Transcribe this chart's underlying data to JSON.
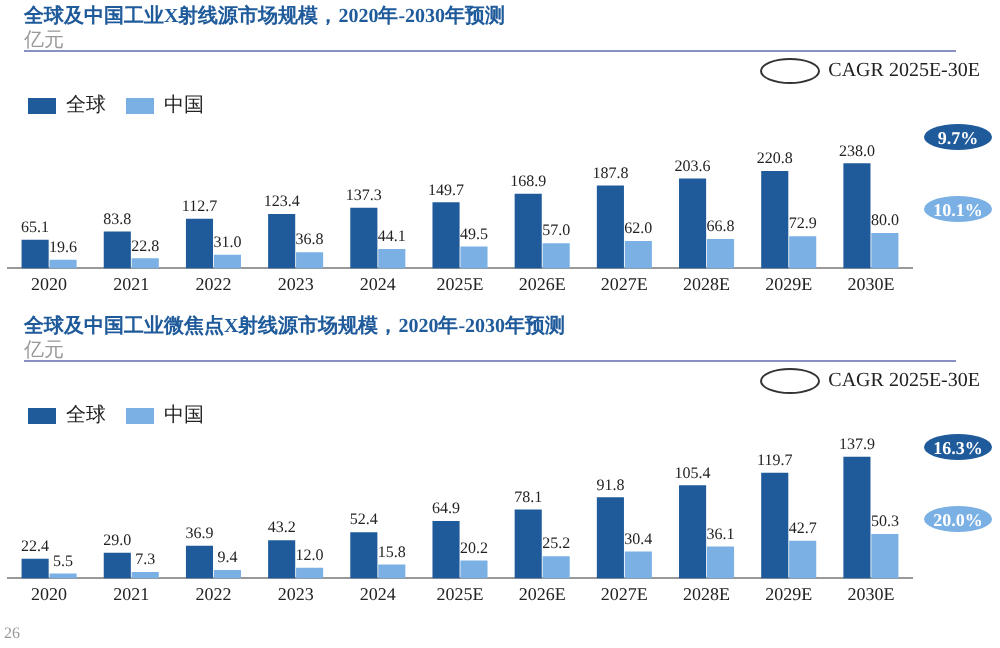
{
  "chart_data": [
    {
      "type": "bar",
      "title": "全球及中国工业X射线源市场规模，2020年-2030年预测",
      "subtitle": "亿元",
      "categories": [
        "2020",
        "2021",
        "2022",
        "2023",
        "2024",
        "2025E",
        "2026E",
        "2027E",
        "2028E",
        "2029E",
        "2030E"
      ],
      "series": [
        {
          "name": "全球",
          "color": "#1f5a9a",
          "values": [
            65.1,
            83.8,
            112.7,
            123.4,
            137.3,
            149.7,
            168.9,
            187.8,
            203.6,
            220.8,
            238.0
          ],
          "value_labels": [
            "65.1",
            "83.8",
            "112.7",
            "123.4",
            "137.3",
            "149.7",
            "168.9",
            "187.8",
            "203.6",
            "220.8",
            "238.0"
          ]
        },
        {
          "name": "中国",
          "color": "#7ab0e3",
          "values": [
            19.6,
            22.8,
            31.0,
            36.8,
            44.1,
            49.5,
            57.0,
            62.0,
            66.8,
            72.9,
            80.0
          ],
          "value_labels": [
            "19.6",
            "22.8",
            "31.0",
            "36.8",
            "44.1",
            "49.5",
            "57.0",
            "62.0",
            "66.8",
            "72.9",
            "80.0"
          ]
        }
      ],
      "annotations": [
        "CAGR 2025E-30E",
        "9.7%",
        "10.1%"
      ],
      "grid": false,
      "legend": "top left",
      "tick_labels": "x"
    },
    {
      "type": "bar",
      "title": "全球及中国工业微焦点X射线源市场规模，2020年-2030年预测",
      "subtitle": "亿元",
      "categories": [
        "2020",
        "2021",
        "2022",
        "2023",
        "2024",
        "2025E",
        "2026E",
        "2027E",
        "2028E",
        "2029E",
        "2030E"
      ],
      "series": [
        {
          "name": "全球",
          "color": "#1f5a9a",
          "values": [
            22.4,
            29.0,
            36.9,
            43.2,
            52.4,
            64.9,
            78.1,
            91.8,
            105.4,
            119.7,
            137.9
          ],
          "value_labels": [
            "22.4",
            "29.0",
            "36.9",
            "43.2",
            "52.4",
            "64.9",
            "78.1",
            "91.8",
            "105.4",
            "119.7",
            "137.9"
          ]
        },
        {
          "name": "中国",
          "color": "#7ab0e3",
          "values": [
            5.5,
            7.3,
            9.4,
            12.0,
            15.8,
            20.2,
            25.2,
            30.4,
            36.1,
            42.7,
            50.3
          ],
          "value_labels": [
            "5.5",
            "7.3",
            "9.4",
            "12.0",
            "15.8",
            "20.2",
            "25.2",
            "30.4",
            "36.1",
            "42.7",
            "50.3"
          ]
        }
      ],
      "annotations": [
        "CAGR 2025E-30E",
        "16.3%",
        "20.0%",
        "26"
      ],
      "grid": false,
      "legend": "top left",
      "tick_labels": "x"
    }
  ]
}
